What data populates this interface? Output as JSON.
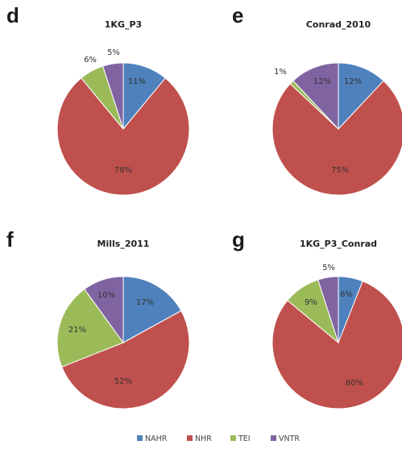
{
  "legend": [
    {
      "name": "NAHR",
      "color": "#4f81bd"
    },
    {
      "name": "NHR",
      "color": "#c0504d"
    },
    {
      "name": "TEI",
      "color": "#9bbb59"
    },
    {
      "name": "VNTR",
      "color": "#8064a2"
    }
  ],
  "chart_data": [
    {
      "type": "pie",
      "panel": "d",
      "title": "1KG_P3",
      "categories": [
        "NAHR",
        "NHR",
        "TEI",
        "VNTR"
      ],
      "values": [
        11,
        78,
        6,
        5
      ],
      "labels": [
        "11%",
        "78%",
        "6%",
        "5%"
      ]
    },
    {
      "type": "pie",
      "panel": "e",
      "title": "Conrad_2010",
      "categories": [
        "NAHR",
        "NHR",
        "TEI",
        "VNTR"
      ],
      "values": [
        12,
        75,
        1,
        12
      ],
      "labels": [
        "12%",
        "75%",
        "1%",
        "12%"
      ]
    },
    {
      "type": "pie",
      "panel": "f",
      "title": "Mills_2011",
      "categories": [
        "NAHR",
        "NHR",
        "TEI",
        "VNTR"
      ],
      "values": [
        17,
        52,
        21,
        10
      ],
      "labels": [
        "17%",
        "52%",
        "21%",
        "10%"
      ]
    },
    {
      "type": "pie",
      "panel": "g",
      "title": "1KG_P3_Conrad",
      "categories": [
        "NAHR",
        "NHR",
        "TEI",
        "VNTR"
      ],
      "values": [
        6,
        80,
        9,
        5
      ],
      "labels": [
        "6%",
        "80%",
        "9%",
        "5%"
      ]
    }
  ]
}
